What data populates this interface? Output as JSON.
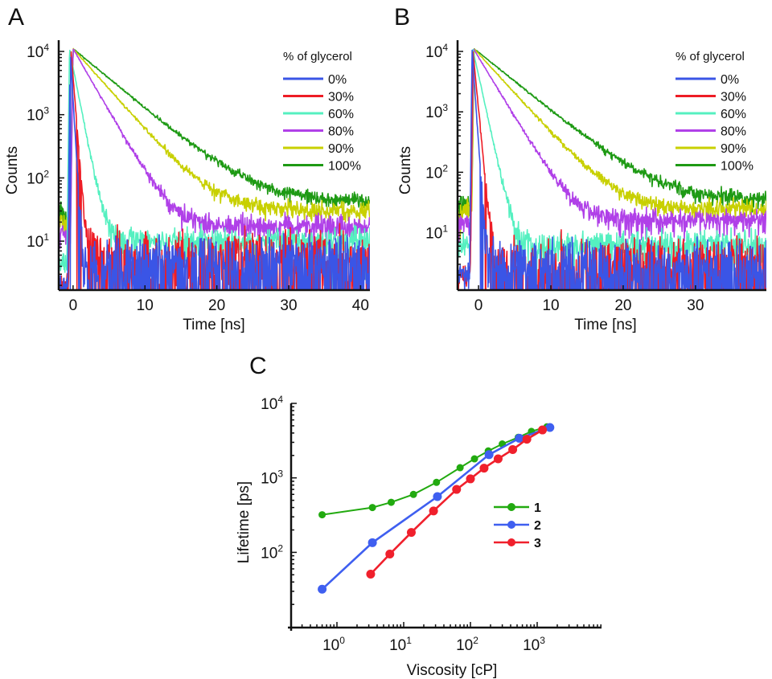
{
  "figure": {
    "panels": [
      "A",
      "B",
      "C"
    ]
  },
  "chart_data": [
    {
      "panel": "A",
      "type": "line",
      "title": "",
      "xlabel": "Time [ns]",
      "ylabel": "Counts",
      "xscale": "linear",
      "yscale": "log",
      "xlim": [
        -2,
        41.3
      ],
      "ylim": [
        1.7,
        10000
      ],
      "xticks": [
        0,
        10,
        20,
        30,
        40
      ],
      "xtick_labels": [
        "0",
        "10",
        "20",
        "30",
        "40"
      ],
      "yticks": [
        10,
        100,
        1000,
        10000
      ],
      "ytick_labels": [
        {
          "base": "10",
          "exp": "1"
        },
        {
          "base": "10",
          "exp": "2"
        },
        {
          "base": "10",
          "exp": "3"
        },
        {
          "base": "10",
          "exp": "4"
        }
      ],
      "grid": false,
      "legend": {
        "title": "% of glycerol",
        "placement": "top-right"
      },
      "series": [
        {
          "name": "0%",
          "color": "#3a55e6",
          "peak_time_ns": -0.4,
          "peak": 11000,
          "lifetime_ns": 0.22,
          "background": 3.5,
          "pre_peak": 2
        },
        {
          "name": "30%",
          "color": "#ee1c25",
          "peak_time_ns": -0.3,
          "peak": 11000,
          "lifetime_ns": 0.3,
          "background": 4.5,
          "pre_peak": 2
        },
        {
          "name": "60%",
          "color": "#55f0c0",
          "peak_time_ns": -0.5,
          "peak": 11000,
          "lifetime_ns": 0.75,
          "background": 10,
          "pre_peak": 5
        },
        {
          "name": "80%",
          "color": "#b040e8",
          "peak_time_ns": 0.0,
          "peak": 11000,
          "lifetime_ns": 2.2,
          "background": 17,
          "pre_peak": 14
        },
        {
          "name": "90%",
          "color": "#c8d000",
          "peak_time_ns": 0.0,
          "peak": 11000,
          "lifetime_ns": 3.4,
          "background": 30,
          "pre_peak": 20
        },
        {
          "name": "100%",
          "color": "#1e9a14",
          "peak_time_ns": 0.0,
          "peak": 11000,
          "lifetime_ns": 4.6,
          "background": 42,
          "pre_peak": 25
        }
      ]
    },
    {
      "panel": "B",
      "type": "line",
      "title": "",
      "xlabel": "Time [ns]",
      "ylabel": "Counts",
      "xscale": "linear",
      "yscale": "log",
      "xlim": [
        -2.9,
        39.8
      ],
      "ylim": [
        1.2,
        10000
      ],
      "xticks": [
        0,
        10,
        20,
        30
      ],
      "xtick_labels": [
        "0",
        "10",
        "20",
        "30"
      ],
      "yticks": [
        10,
        100,
        1000,
        10000
      ],
      "ytick_labels": [
        {
          "base": "10",
          "exp": "1"
        },
        {
          "base": "10",
          "exp": "2"
        },
        {
          "base": "10",
          "exp": "3"
        },
        {
          "base": "10",
          "exp": "4"
        }
      ],
      "grid": false,
      "legend": {
        "title": "% of glycerol",
        "placement": "top-right"
      },
      "series": [
        {
          "name": "0%",
          "color": "#3a55e6",
          "peak_time_ns": -0.9,
          "peak": 11000,
          "lifetime_ns": 0.25,
          "background": 2.0,
          "pre_peak": 2
        },
        {
          "name": "30%",
          "color": "#ee1c25",
          "peak_time_ns": -0.8,
          "peak": 11000,
          "lifetime_ns": 0.35,
          "background": 2.2,
          "pre_peak": 2
        },
        {
          "name": "60%",
          "color": "#55f0c0",
          "peak_time_ns": -0.8,
          "peak": 11000,
          "lifetime_ns": 0.8,
          "background": 6,
          "pre_peak": 6
        },
        {
          "name": "80%",
          "color": "#b040e8",
          "peak_time_ns": -0.7,
          "peak": 11000,
          "lifetime_ns": 2.2,
          "background": 16,
          "pre_peak": 14
        },
        {
          "name": "90%",
          "color": "#c8d000",
          "peak_time_ns": -0.6,
          "peak": 11000,
          "lifetime_ns": 3.3,
          "background": 25,
          "pre_peak": 22
        },
        {
          "name": "100%",
          "color": "#1e9a14",
          "peak_time_ns": -0.6,
          "peak": 11000,
          "lifetime_ns": 4.5,
          "background": 35,
          "pre_peak": 30
        }
      ]
    },
    {
      "panel": "C",
      "type": "line",
      "title": "",
      "xlabel": "Viscosity [cP]",
      "ylabel": "Lifetime [ps]",
      "xscale": "log",
      "yscale": "log",
      "xlim": [
        0.2,
        9000
      ],
      "ylim": [
        10,
        10000
      ],
      "xticks": [
        1,
        10,
        100,
        1000
      ],
      "xtick_labels": [
        {
          "base": "10",
          "exp": "0"
        },
        {
          "base": "10",
          "exp": "1"
        },
        {
          "base": "10",
          "exp": "2"
        },
        {
          "base": "10",
          "exp": "3"
        }
      ],
      "yticks": [
        100,
        1000,
        10000
      ],
      "ytick_labels": [
        {
          "base": "10",
          "exp": "2"
        },
        {
          "base": "10",
          "exp": "3"
        },
        {
          "base": "10",
          "exp": "4"
        }
      ],
      "grid": false,
      "legend": {
        "placement": "center-right"
      },
      "series": [
        {
          "name": "1",
          "color": "#22aa10",
          "x": [
            0.6,
            3.4,
            6.5,
            14,
            31,
            70,
            115,
            185,
            300,
            520,
            820,
            1400
          ],
          "y": [
            320,
            400,
            470,
            600,
            870,
            1370,
            1800,
            2300,
            2850,
            3500,
            4200,
            4850
          ]
        },
        {
          "name": "2",
          "color": "#3f5ff0",
          "x": [
            0.6,
            3.4,
            32,
            190,
            540,
            1550
          ],
          "y": [
            32,
            135,
            560,
            2050,
            3400,
            4750
          ]
        },
        {
          "name": "3",
          "color": "#f0202c",
          "x": [
            3.2,
            6.2,
            13,
            28,
            62,
            100,
            160,
            260,
            430,
            700,
            1200
          ],
          "y": [
            51,
            95,
            185,
            360,
            700,
            970,
            1350,
            1800,
            2400,
            3300,
            4400
          ]
        }
      ]
    }
  ]
}
